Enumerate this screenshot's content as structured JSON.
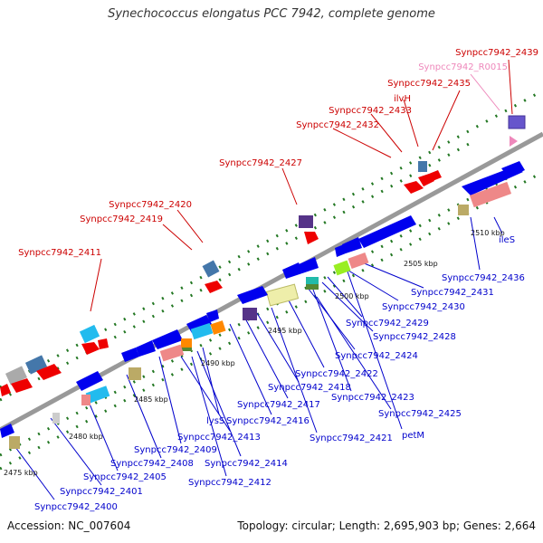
{
  "header": {
    "title": "Synechococcus elongatus PCC 7942, complete genome"
  },
  "footer": {
    "accession": "Accession: NC_007604",
    "topology": "Topology: circular; Length: 2,695,903 bp; Genes: 2,664"
  },
  "colors": {
    "top_label": "#cc0000",
    "bottom_label": "#0000cc",
    "rna_label": "#ee88bb",
    "backbone": "#999999",
    "tick": "#227722"
  },
  "scale_labels": [
    "2475 kbp",
    "2480 kbp",
    "2485 kbp",
    "2490 kbp",
    "2495 kbp",
    "2500 kbp",
    "2505 kbp",
    "2510 kbp"
  ],
  "top_labels": [
    {
      "text": "Synpcc7942_2439",
      "kind": "gene"
    },
    {
      "text": "Synpcc7942_R0015",
      "kind": "rna"
    },
    {
      "text": "Synpcc7942_2435",
      "kind": "gene"
    },
    {
      "text": "ilvH",
      "kind": "gene"
    },
    {
      "text": "Synpcc7942_2433",
      "kind": "gene"
    },
    {
      "text": "Synpcc7942_2432",
      "kind": "gene"
    },
    {
      "text": "Synpcc7942_2427",
      "kind": "gene"
    },
    {
      "text": "Synpcc7942_2420",
      "kind": "gene"
    },
    {
      "text": "Synpcc7942_2419",
      "kind": "gene"
    },
    {
      "text": "Synpcc7942_2411",
      "kind": "gene"
    }
  ],
  "bottom_labels": [
    "ileS",
    "Synpcc7942_2436",
    "Synpcc7942_2431",
    "Synpcc7942_2430",
    "Synpcc7942_2429",
    "Synpcc7942_2428",
    "Synpcc7942_2424",
    "Synpcc7942_2422",
    "Synpcc7942_2423",
    "Synpcc7942_2418",
    "Synpcc7942_2417",
    "Synpcc7942_2425",
    "Synpcc7942_2416",
    "lysS",
    "petM",
    "Synpcc7942_2413",
    "Synpcc7942_2421",
    "Synpcc7942_2409",
    "Synpcc7942_2414",
    "Synpcc7942_2408",
    "Synpcc7942_2405",
    "Synpcc7942_2412",
    "Synpcc7942_2401",
    "Synpcc7942_2400"
  ]
}
